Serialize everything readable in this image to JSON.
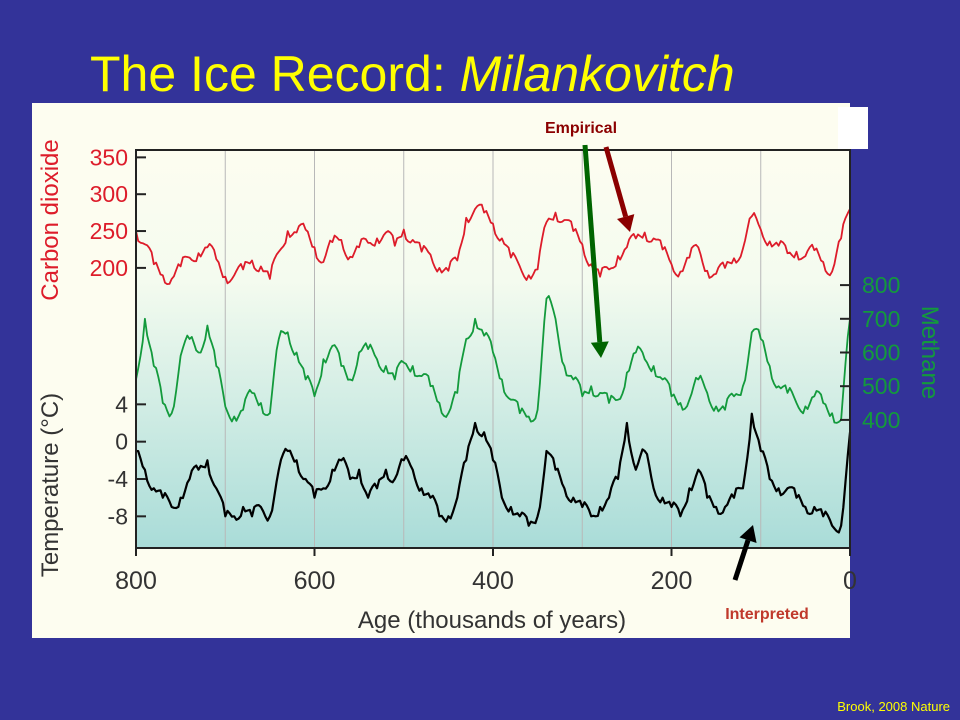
{
  "slide": {
    "title_main": "The Ice Record: ",
    "title_italic": "Milankovitch",
    "credit": "Brook, 2008 Nature",
    "annotations": {
      "empirical": "Empirical",
      "interpreted": "Interpreted"
    }
  },
  "colors": {
    "background": "#333399",
    "title": "#ffff00",
    "co2": "#dd1c2a",
    "methane": "#139a3c",
    "temperature": "#000000",
    "empirical_label": "#8b0000",
    "arrow_dark_red": "#8b0000",
    "arrow_green": "#006400",
    "interpreted_label": "#c0392b"
  },
  "chart_data": {
    "type": "line",
    "xlabel": "Age (thousands of years)",
    "xlim": [
      800,
      0
    ],
    "x_ticks": [
      800,
      600,
      400,
      200,
      0
    ],
    "series": [
      {
        "name": "Carbon dioxide",
        "axis_side": "left",
        "yticks": [
          350,
          300,
          250,
          200
        ],
        "ylim": [
          170,
          360
        ],
        "x": [
          800,
          790,
          780,
          770,
          760,
          750,
          740,
          730,
          720,
          710,
          700,
          690,
          680,
          670,
          660,
          650,
          640,
          630,
          620,
          610,
          600,
          590,
          580,
          570,
          560,
          550,
          540,
          530,
          520,
          510,
          500,
          490,
          480,
          470,
          460,
          450,
          440,
          430,
          420,
          410,
          400,
          390,
          380,
          370,
          360,
          350,
          340,
          330,
          320,
          310,
          300,
          290,
          280,
          270,
          260,
          250,
          240,
          230,
          220,
          210,
          200,
          190,
          180,
          170,
          160,
          150,
          140,
          130,
          120,
          110,
          100,
          90,
          80,
          70,
          60,
          50,
          40,
          30,
          20,
          10,
          0
        ],
        "y": [
          250,
          232,
          205,
          190,
          185,
          202,
          214,
          220,
          228,
          212,
          188,
          190,
          198,
          210,
          202,
          185,
          222,
          250,
          248,
          252,
          228,
          208,
          235,
          238,
          215,
          228,
          234,
          240,
          248,
          230,
          252,
          238,
          222,
          218,
          200,
          196,
          210,
          268,
          280,
          275,
          260,
          240,
          214,
          202,
          190,
          198,
          262,
          275,
          265,
          250,
          232,
          205,
          188,
          198,
          216,
          228,
          240,
          248,
          240,
          225,
          205,
          195,
          214,
          228,
          196,
          192,
          200,
          213,
          226,
          270,
          252,
          236,
          230,
          220,
          222,
          216,
          224,
          208,
          195,
          240,
          280
        ]
      },
      {
        "name": "Methane",
        "axis_side": "right",
        "yticks": [
          800,
          700,
          600,
          500,
          400
        ],
        "ylim": [
          370,
          830
        ],
        "x": [
          800,
          790,
          780,
          770,
          760,
          750,
          740,
          730,
          720,
          710,
          700,
          690,
          680,
          670,
          660,
          650,
          640,
          630,
          620,
          610,
          600,
          590,
          580,
          570,
          560,
          550,
          540,
          530,
          520,
          510,
          500,
          490,
          480,
          470,
          460,
          450,
          440,
          430,
          420,
          410,
          400,
          390,
          380,
          370,
          360,
          350,
          340,
          330,
          320,
          310,
          300,
          290,
          280,
          270,
          260,
          250,
          240,
          230,
          220,
          210,
          200,
          190,
          180,
          170,
          160,
          150,
          140,
          130,
          120,
          110,
          100,
          90,
          80,
          70,
          60,
          50,
          40,
          30,
          20,
          10,
          0
        ],
        "y": [
          520,
          700,
          560,
          450,
          420,
          590,
          640,
          600,
          680,
          560,
          440,
          410,
          430,
          480,
          450,
          420,
          640,
          660,
          600,
          520,
          470,
          580,
          620,
          560,
          520,
          600,
          610,
          580,
          560,
          520,
          570,
          560,
          530,
          500,
          450,
          420,
          480,
          640,
          700,
          650,
          600,
          520,
          460,
          420,
          410,
          430,
          760,
          700,
          560,
          520,
          470,
          500,
          480,
          450,
          460,
          540,
          600,
          580,
          560,
          520,
          470,
          450,
          460,
          520,
          480,
          440,
          430,
          470,
          500,
          660,
          640,
          560,
          500,
          480,
          450,
          440,
          470,
          450,
          420,
          400,
          700
        ]
      },
      {
        "name": "Temperature (°C)",
        "axis_side": "left",
        "yticks": [
          4,
          0,
          -4,
          -8
        ],
        "ylim": [
          -10,
          5
        ],
        "x": [
          800,
          790,
          780,
          770,
          760,
          750,
          740,
          730,
          720,
          710,
          700,
          690,
          680,
          670,
          660,
          650,
          640,
          630,
          620,
          610,
          600,
          590,
          580,
          570,
          560,
          550,
          540,
          530,
          520,
          510,
          500,
          490,
          480,
          470,
          460,
          450,
          440,
          430,
          420,
          410,
          400,
          390,
          380,
          370,
          360,
          350,
          340,
          330,
          320,
          310,
          300,
          290,
          280,
          270,
          260,
          250,
          240,
          230,
          220,
          210,
          200,
          190,
          180,
          170,
          160,
          150,
          140,
          130,
          120,
          110,
          100,
          90,
          80,
          70,
          60,
          50,
          40,
          30,
          20,
          10,
          0
        ],
        "y": [
          -1,
          -3,
          -5,
          -6,
          -7,
          -6,
          -4,
          -3,
          -2,
          -5,
          -8,
          -8,
          -7,
          -8,
          -7,
          -8,
          -3,
          -1,
          -2,
          -4,
          -6,
          -5,
          -3,
          -2,
          -4,
          -3,
          -6,
          -5,
          -3,
          -4,
          -2,
          -3,
          -5,
          -6,
          -8,
          -8,
          -6,
          -2,
          2,
          1,
          -2,
          -6,
          -7,
          -8,
          -9,
          -8,
          -1,
          -3,
          -5,
          -6,
          -7,
          -8,
          -7,
          -6,
          -4,
          2,
          -3,
          -1,
          -5,
          -6,
          -7,
          -8,
          -5,
          -3,
          -6,
          -7,
          -7,
          -6,
          -5,
          3,
          -1,
          -4,
          -5,
          -5,
          -6,
          -7,
          -7,
          -8,
          -9,
          -9,
          1
        ]
      }
    ]
  }
}
